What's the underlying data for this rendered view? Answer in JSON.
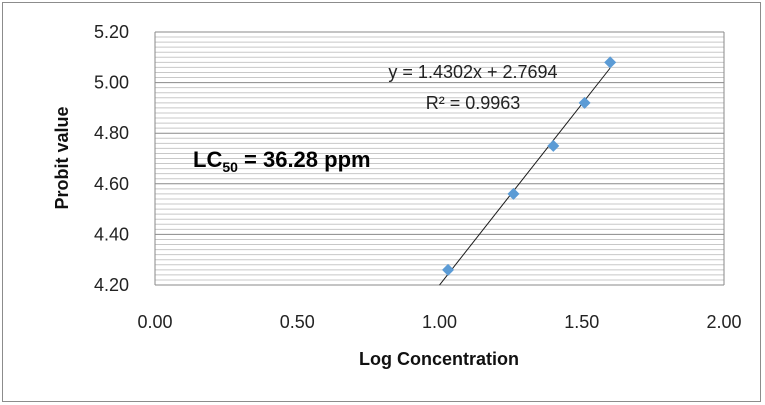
{
  "chart_data": {
    "type": "scatter",
    "xlabel": "Log Concentration",
    "ylabel": "Probit value",
    "xlim": [
      0.0,
      2.0
    ],
    "ylim": [
      4.2,
      5.2
    ],
    "x_ticks": [
      "0.00",
      "0.50",
      "1.00",
      "1.50",
      "2.00"
    ],
    "y_ticks": [
      "4.20",
      "4.40",
      "4.60",
      "4.80",
      "5.00",
      "5.20"
    ],
    "grid": true,
    "marker_color": "#5b9bd5",
    "trendline_color": "#1a1a1a",
    "series": [
      {
        "x": [
          1.03,
          1.26,
          1.4,
          1.51,
          1.6
        ],
        "y": [
          4.26,
          4.56,
          4.75,
          4.92,
          5.08
        ]
      }
    ],
    "trendline": {
      "type": "linear",
      "slope": 1.4302,
      "intercept": 2.7694,
      "x_range": [
        1.0,
        1.6
      ],
      "equation_label": "y = 1.4302x + 2.7694",
      "r2_label": "R² = 0.9963"
    },
    "annotation": {
      "prefix": "LC",
      "subscript": "50",
      "text": " = 36.28  ppm"
    }
  }
}
